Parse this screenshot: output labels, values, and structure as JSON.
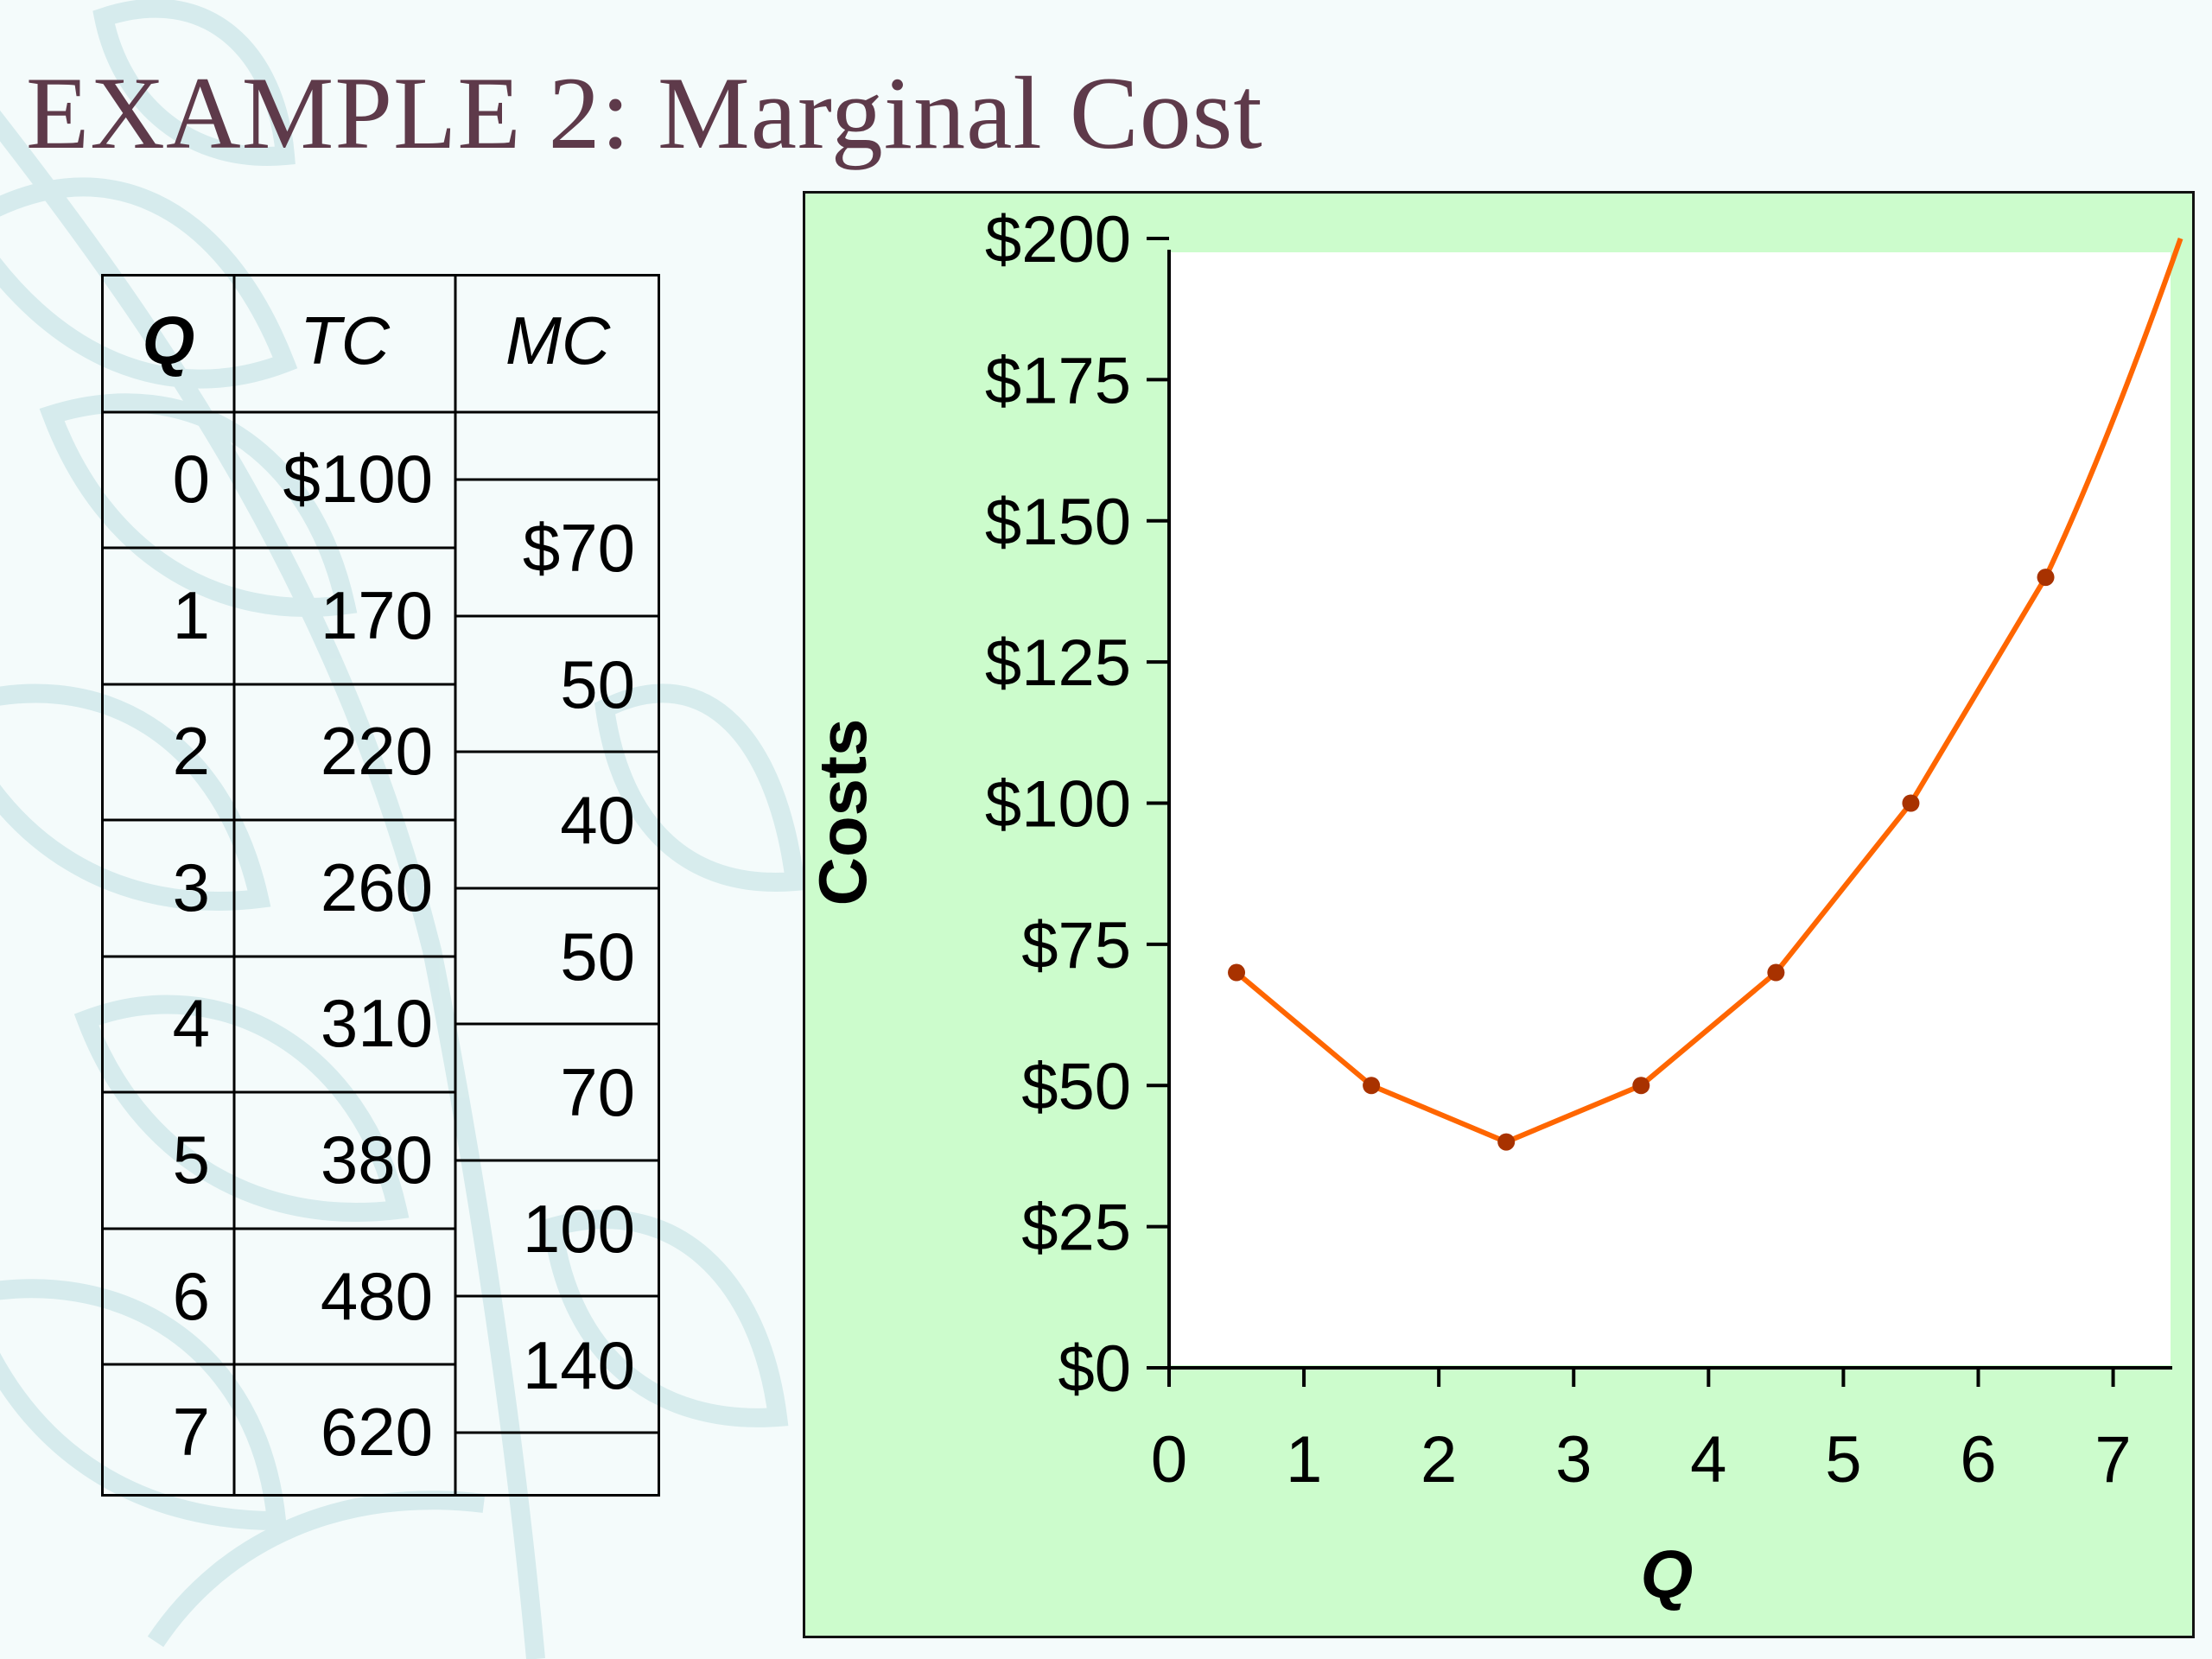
{
  "slide": {
    "title": "EXAMPLE 2:  Marginal Cost"
  },
  "table": {
    "headers": {
      "q": "Q",
      "tc": "TC",
      "mc": "MC"
    },
    "q": [
      "0",
      "1",
      "2",
      "3",
      "4",
      "5",
      "6",
      "7"
    ],
    "tc": [
      "$100",
      "170",
      "220",
      "260",
      "310",
      "380",
      "480",
      "620"
    ],
    "mc": [
      "$70",
      "50",
      "40",
      "50",
      "70",
      "100",
      "140"
    ]
  },
  "colors": {
    "curve": "#ff6600",
    "marker": "#a83200",
    "panel": "#ccfccc",
    "plot": "#ffffff",
    "title": "#5e3a4a"
  },
  "chart_data": {
    "type": "line",
    "title": "",
    "xlabel": "Q",
    "ylabel": "Costs",
    "xlim": [
      0,
      7.4
    ],
    "ylim": [
      0,
      200
    ],
    "xticks": [
      0,
      1,
      2,
      3,
      4,
      5,
      6,
      7
    ],
    "yticks": [
      0,
      25,
      50,
      75,
      100,
      125,
      150,
      175,
      200
    ],
    "ytick_labels": [
      "$0",
      "$25",
      "$50",
      "$75",
      "$100",
      "$125",
      "$150",
      "$175",
      "$200"
    ],
    "grid": false,
    "series": [
      {
        "x": [
          0.5,
          1.5,
          2.5,
          3.5,
          4.5,
          5.5,
          6.5
        ],
        "y": [
          70,
          50,
          40,
          50,
          70,
          100,
          140
        ],
        "curve_end": [
          7.5,
          200
        ]
      }
    ]
  }
}
